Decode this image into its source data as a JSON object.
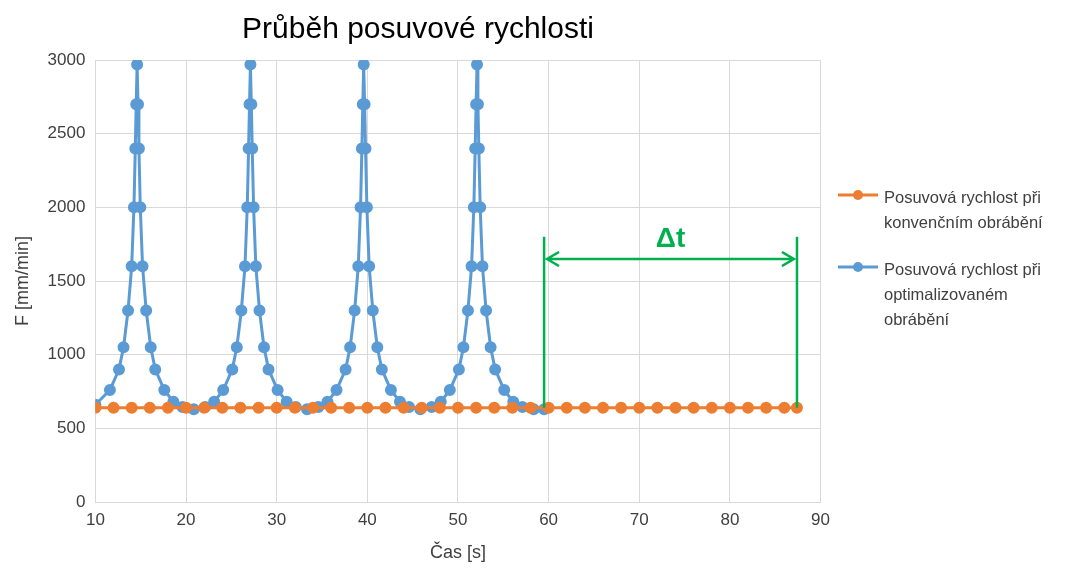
{
  "chart_data": {
    "type": "line",
    "title": "Průběh posuvové rychlosti",
    "xlabel": "Čas [s]",
    "ylabel": "F [mm/min]",
    "xlim": [
      10,
      90
    ],
    "xticks": [
      10,
      20,
      30,
      40,
      50,
      60,
      70,
      80,
      90
    ],
    "ylim": [
      0,
      3000
    ],
    "yticks": [
      0,
      500,
      1000,
      1500,
      2000,
      2500,
      3000
    ],
    "grid": true,
    "legend": "right",
    "marker": "circle",
    "ref_lines": [
      {
        "axis": "x",
        "value": 59.5,
        "color": "#00b050"
      },
      {
        "axis": "x",
        "value": 87.4,
        "color": "#00b050"
      }
    ],
    "annotations": [
      "Δt"
    ],
    "series": [
      {
        "name": "Posuvová rychlost při konvenčním obrábění",
        "color": "#ed7d31",
        "x": [
          10,
          12,
          14,
          16,
          18,
          20,
          22,
          24,
          26,
          28,
          30,
          32,
          34,
          36,
          38,
          40,
          42,
          44,
          46,
          48,
          50,
          52,
          54,
          56,
          58,
          60,
          62,
          64,
          66,
          68,
          70,
          72,
          74,
          76,
          78,
          80,
          82,
          84,
          86,
          87.4
        ],
        "values": [
          640,
          640,
          640,
          640,
          640,
          640,
          640,
          640,
          640,
          640,
          640,
          640,
          640,
          640,
          640,
          640,
          640,
          640,
          640,
          640,
          640,
          640,
          640,
          640,
          640,
          640,
          640,
          640,
          640,
          640,
          640,
          640,
          640,
          640,
          640,
          640,
          640,
          640,
          640,
          640
        ]
      },
      {
        "name": "Posuvová rychlost při optimalizovaném obrábění",
        "color": "#5b9bd5",
        "x": [
          10,
          11.6,
          12.6,
          13.1,
          13.6,
          14.0,
          14.25,
          14.4,
          14.5,
          14.6,
          14.7,
          14.8,
          14.95,
          15.2,
          15.6,
          16.1,
          16.6,
          17.6,
          18.6,
          19.6,
          20.85,
          22.1,
          23.1,
          24.1,
          25.1,
          25.6,
          26.1,
          26.5,
          26.75,
          26.9,
          27.0,
          27.1,
          27.2,
          27.3,
          27.45,
          27.7,
          28.1,
          28.6,
          29.1,
          30.1,
          31.1,
          32.1,
          33.35,
          34.6,
          35.6,
          36.6,
          37.6,
          38.1,
          38.6,
          39.0,
          39.25,
          39.4,
          39.5,
          39.6,
          39.7,
          39.8,
          39.95,
          40.2,
          40.6,
          41.1,
          41.6,
          42.6,
          43.6,
          44.6,
          45.85,
          47.1,
          48.1,
          49.1,
          50.1,
          50.6,
          51.1,
          51.5,
          51.75,
          51.9,
          52.0,
          52.1,
          52.2,
          52.3,
          52.45,
          52.7,
          53.1,
          53.6,
          54.1,
          55.1,
          56.1,
          57.1,
          58.35,
          59.5
        ],
        "values": [
          660,
          760,
          900,
          1050,
          1300,
          1600,
          2000,
          2400,
          2700,
          2970,
          2700,
          2400,
          2000,
          1600,
          1300,
          1050,
          900,
          760,
          680,
          645,
          630,
          645,
          680,
          760,
          900,
          1050,
          1300,
          1600,
          2000,
          2400,
          2700,
          2970,
          2700,
          2400,
          2000,
          1600,
          1300,
          1050,
          900,
          760,
          680,
          645,
          630,
          645,
          680,
          760,
          900,
          1050,
          1300,
          1600,
          2000,
          2400,
          2700,
          2970,
          2700,
          2400,
          2000,
          1600,
          1300,
          1050,
          900,
          760,
          680,
          645,
          630,
          645,
          680,
          760,
          900,
          1050,
          1300,
          1600,
          2000,
          2400,
          2700,
          2970,
          2700,
          2400,
          2000,
          1600,
          1300,
          1050,
          900,
          760,
          680,
          645,
          630,
          630
        ]
      }
    ]
  }
}
